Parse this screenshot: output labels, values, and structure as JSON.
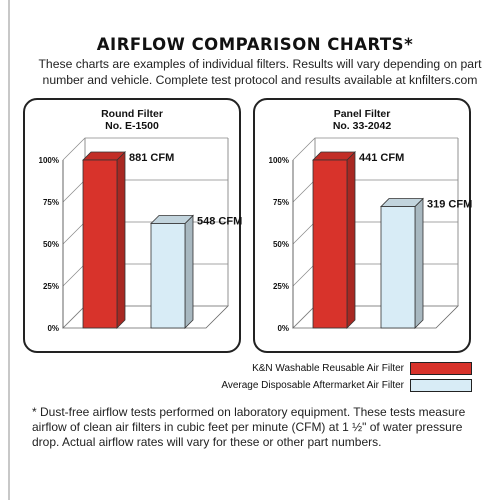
{
  "header": {
    "title": "AIRFLOW COMPARISON CHARTS*",
    "subtitle_line1": "These charts are examples of individual filters. Results will vary depending on part",
    "subtitle_line2": "number and vehicle. Complete test protocol and results available at knfilters.com"
  },
  "legend": {
    "kn_label": "K&N Washable Reusable Air Filter",
    "disposable_label": "Average Disposable Aftermarket Air Filter"
  },
  "colors": {
    "kn": "#d8332b",
    "disposable": "#d8ecf6"
  },
  "footnote": {
    "line1": "* Dust-free airflow tests performed on laboratory equipment. These tests measure",
    "line2": "airflow of clean air filters in cubic feet per minute (CFM) at 1 ½\" of water pressure",
    "line3": "drop. Actual airflow rates will vary for these or other part numbers."
  },
  "chart_data": [
    {
      "type": "bar",
      "title_line1": "Round Filter",
      "title_line2": "No. E-1500",
      "y_ticks": [
        "0%",
        "25%",
        "50%",
        "75%",
        "100%"
      ],
      "ylim": [
        0,
        100
      ],
      "series": [
        {
          "name": "K&N Washable Reusable Air Filter",
          "value": 100,
          "label": "881 CFM"
        },
        {
          "name": "Average Disposable Aftermarket Air Filter",
          "value": 62.2,
          "label": "548 CFM"
        }
      ]
    },
    {
      "type": "bar",
      "title_line1": "Panel Filter",
      "title_line2": "No. 33-2042",
      "y_ticks": [
        "0%",
        "25%",
        "50%",
        "75%",
        "100%"
      ],
      "ylim": [
        0,
        100
      ],
      "series": [
        {
          "name": "K&N Washable Reusable Air Filter",
          "value": 100,
          "label": "441 CFM"
        },
        {
          "name": "Average Disposable Aftermarket Air Filter",
          "value": 72.3,
          "label": "319 CFM"
        }
      ]
    }
  ]
}
